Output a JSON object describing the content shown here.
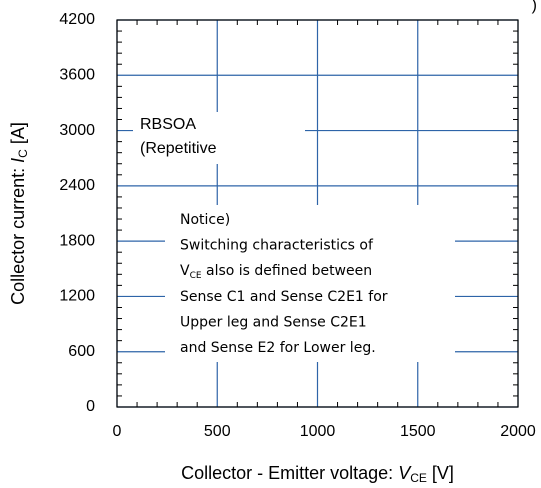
{
  "chart_data": {
    "type": "line",
    "corner_text": ")",
    "xlabel": {
      "prefix": "Collector - Emitter voltage: ",
      "symbol": "V",
      "subscript": "CE",
      "suffix": " [V]"
    },
    "ylabel": {
      "prefix": "Collector current: ",
      "symbol": "I",
      "subscript": "C",
      "suffix": " [A]"
    },
    "xlim": [
      0,
      2000
    ],
    "xticks": [
      0,
      500,
      1000,
      1500,
      2000
    ],
    "ylim": [
      0,
      4200
    ],
    "yticks": [
      0,
      600,
      1200,
      1800,
      2400,
      3000,
      3600,
      4200
    ],
    "grid": true,
    "grid_color": "#2e64a8",
    "series": [],
    "annotations": [
      {
        "lines": [
          "RBSOA",
          "(Repetitive"
        ]
      },
      {
        "lines": [
          "Notice)",
          "Switching characteristics of",
          {
            "symbol": "V",
            "subscript": "CE",
            "text": " also is defined between"
          },
          "Sense C1 and Sense C2E1 for",
          "Upper leg  and Sense  C2E1",
          "and Sense E2 for Lower leg."
        ]
      }
    ]
  }
}
